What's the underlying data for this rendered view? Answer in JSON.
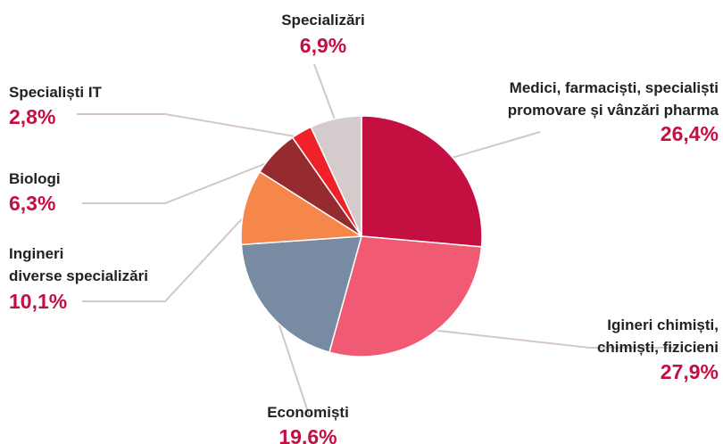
{
  "chart_data": {
    "type": "pie",
    "categories": [
      "Medici, farmaciști, specialiști\npromovare și vânzări pharma",
      "Igineri chimiști,\nchimiști, fizicieni",
      "Economiști",
      "Ingineri\ndiverse specializări",
      "Biologi",
      "Specialiști IT",
      "Specializări"
    ],
    "values": [
      26.4,
      27.9,
      19.6,
      10.1,
      6.3,
      2.8,
      6.9
    ],
    "value_labels": [
      "26,4%",
      "27,9%",
      "19.6%",
      "10,1%",
      "6,3%",
      "2,8%",
      "6,9%"
    ],
    "colors": [
      "#c40f41",
      "#f05b73",
      "#778ba3",
      "#f6874a",
      "#952a2f",
      "#ee2228",
      "#d4cbcc"
    ]
  }
}
